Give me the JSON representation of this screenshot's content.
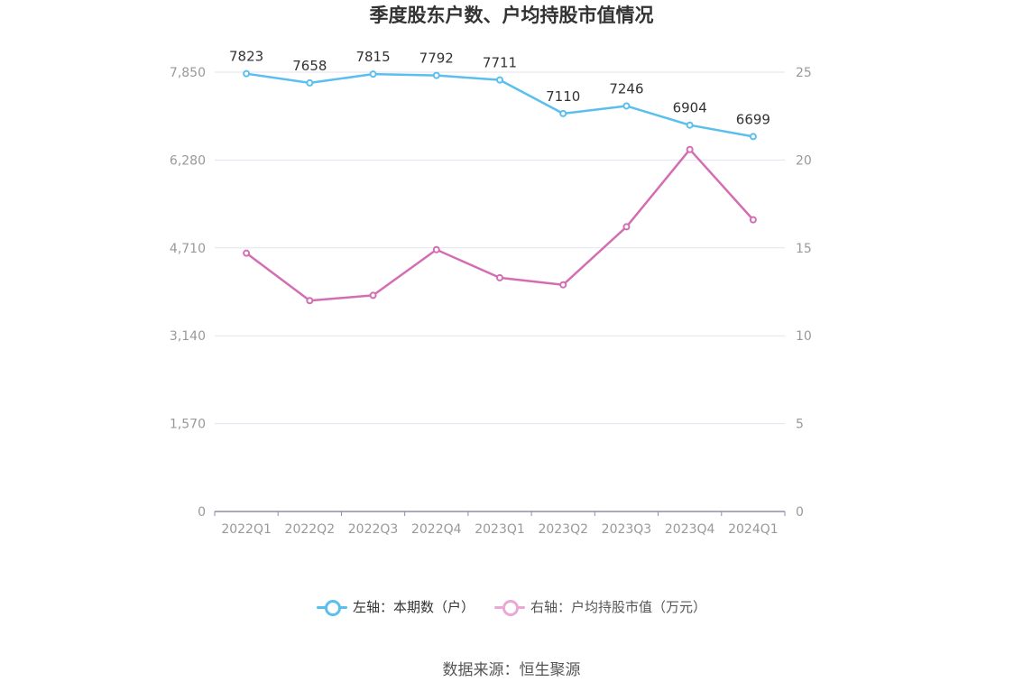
{
  "title": "季度股东户数、户均持股市值情况",
  "source": "数据来源：恒生聚源",
  "chart_data": {
    "type": "line",
    "title": "季度股东户数、户均持股市值情况",
    "categories": [
      "2022Q1",
      "2022Q2",
      "2022Q3",
      "2022Q4",
      "2023Q1",
      "2023Q2",
      "2023Q3",
      "2023Q4",
      "2024Q1"
    ],
    "y_left": {
      "ticks": [
        "0",
        "1,570",
        "3,140",
        "4,710",
        "6,280",
        "7,850"
      ],
      "ylim": [
        0,
        7850
      ]
    },
    "y_right": {
      "ticks": [
        "0",
        "5",
        "10",
        "15",
        "20",
        "25"
      ],
      "ylim": [
        0,
        25
      ]
    },
    "grid": true,
    "legend_position": "bottom",
    "series": [
      {
        "name": "左轴：本期数（户）",
        "axis": "left",
        "color": "#5bbfee",
        "values": [
          7823,
          7658,
          7815,
          7792,
          7711,
          7110,
          7246,
          6904,
          6699
        ],
        "labels": [
          "7823",
          "7658",
          "7815",
          "7792",
          "7711",
          "7110",
          "7246",
          "6904",
          "6699"
        ]
      },
      {
        "name": "右轴：户均持股市值（万元）",
        "axis": "right",
        "color": "#d46eb3",
        "legend_color": "#eaa9d4",
        "values": [
          14.7,
          12.0,
          12.3,
          14.9,
          13.3,
          12.9,
          16.2,
          20.6,
          16.6
        ]
      }
    ]
  }
}
